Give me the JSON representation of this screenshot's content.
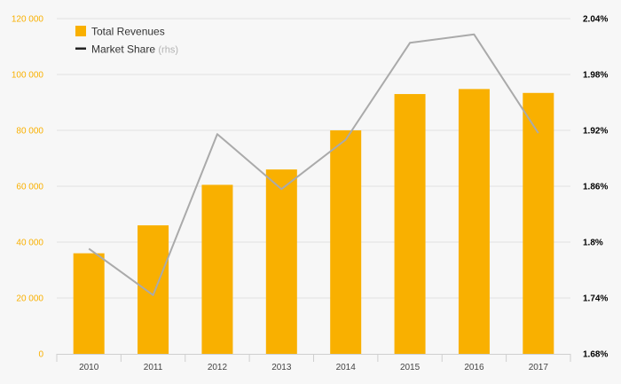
{
  "chart_data": {
    "type": "bar",
    "categories": [
      "2010",
      "2011",
      "2012",
      "2013",
      "2014",
      "2015",
      "2016",
      "2017"
    ],
    "series": [
      {
        "name": "Total Revenues",
        "type": "bar",
        "axis": "left",
        "color": "#f9b000",
        "values": [
          36000,
          46000,
          60500,
          66000,
          80000,
          93000,
          94800,
          93400
        ]
      },
      {
        "name": "Market Share",
        "type": "line",
        "axis": "right",
        "color": "#aaaaaa",
        "values": [
          1.793,
          1.743,
          1.916,
          1.857,
          1.91,
          2.014,
          2.023,
          1.917
        ]
      }
    ],
    "y_left": {
      "ylim": [
        0,
        120000
      ],
      "ticks": [
        0,
        20000,
        40000,
        60000,
        80000,
        100000,
        120000
      ],
      "tick_labels": [
        "0",
        "20 000",
        "40 000",
        "60 000",
        "80 000",
        "100 000",
        "120 000"
      ],
      "color": "#f9b000"
    },
    "y_right": {
      "ylim": [
        1.68,
        2.04
      ],
      "ticks": [
        1.68,
        1.74,
        1.8,
        1.86,
        1.92,
        1.98,
        2.04
      ],
      "tick_labels": [
        "1.68%",
        "1.74%",
        "1.8%",
        "1.86%",
        "1.92%",
        "1.98%",
        "2.04%"
      ],
      "color": "#000000"
    },
    "legend": {
      "placement": "top-left",
      "items": [
        {
          "label": "Total Revenues",
          "suffix": "",
          "marker": "square",
          "color": "#f9b000"
        },
        {
          "label": "Market Share",
          "suffix": "(rhs)",
          "marker": "line",
          "color": "#222222"
        }
      ]
    },
    "grid": true,
    "title": "",
    "xlabel": "",
    "ylabel": ""
  }
}
